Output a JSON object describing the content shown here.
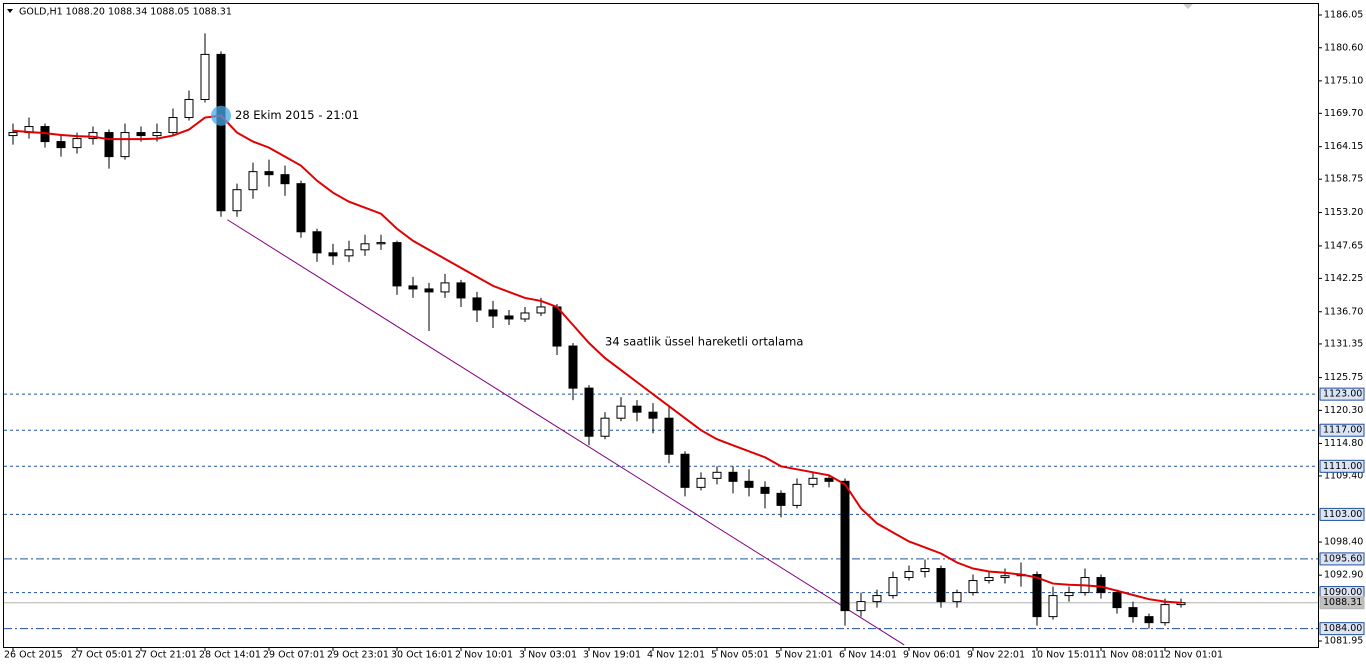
{
  "chart_data": {
    "type": "candlestick",
    "header": "GOLD,H1  1088.20 1088.34 1088.05 1088.31",
    "ylim": [
      1080.95,
      1187.88
    ],
    "yticks": [
      1186.05,
      {
        "value": 1180.6,
        "label": "1180.60"
      },
      {
        "value": 1175.1,
        "label": "1175.10"
      },
      {
        "value": 1169.7,
        "label": "1169.70"
      },
      1164.15,
      1158.75,
      {
        "value": 1153.2,
        "label": "1153.20"
      },
      1147.65,
      1142.25,
      {
        "value": 1136.7,
        "label": "1136.70"
      },
      1131.35,
      1125.75,
      {
        "value": 1120.3,
        "label": "1120.30"
      },
      {
        "value": 1114.8,
        "label": "1114.80"
      },
      {
        "value": 1109.4,
        "label": "1109.40"
      },
      {
        "value": 1098.4,
        "label": "1098.40"
      },
      {
        "value": 1092.9,
        "label": "1092.90"
      },
      1081.95
    ],
    "xtick_labels": [
      "26 Oct 2015",
      "27 Oct 05:01",
      "27 Oct 21:01",
      "28 Oct 14:01",
      "29 Oct 07:01",
      "29 Oct 23:01",
      "30 Oct 16:01",
      "2 Nov 10:01",
      "3 Nov 03:01",
      "3 Nov 19:01",
      "4 Nov 12:01",
      "5 Nov 05:01",
      "5 Nov 21:01",
      "6 Nov 14:01",
      "9 Nov 06:01",
      "9 Nov 22:01",
      "10 Nov 15:01",
      "11 Nov 08:01",
      "12 Nov 01:01"
    ],
    "ohlc": [
      [
        1166,
        1168,
        1164.5,
        1166.5
      ],
      [
        1166.5,
        1169,
        1165.5,
        1167.5
      ],
      [
        1167.5,
        1168,
        1164,
        1165
      ],
      [
        1165,
        1166,
        1162.5,
        1164
      ],
      [
        1164,
        1166.5,
        1163,
        1165.5
      ],
      [
        1165.5,
        1167.5,
        1164.5,
        1166.5
      ],
      [
        1166.5,
        1167,
        1160.5,
        1162.5
      ],
      [
        1162.5,
        1168,
        1162,
        1166.5
      ],
      [
        1166.5,
        1167.5,
        1165,
        1166
      ],
      [
        1166,
        1168,
        1165,
        1166.5
      ],
      [
        1166.5,
        1170.5,
        1166,
        1169
      ],
      [
        1169,
        1173.5,
        1168.5,
        1172
      ],
      [
        1172,
        1183,
        1171.5,
        1179.5
      ],
      [
        1179.5,
        1180,
        1152.5,
        1153.5
      ],
      [
        1153.5,
        1158,
        1152.5,
        1157
      ],
      [
        1157,
        1161.5,
        1155.5,
        1160
      ],
      [
        1160,
        1162,
        1157.5,
        1159.5
      ],
      [
        1159.5,
        1161,
        1156,
        1158
      ],
      [
        1158,
        1158.5,
        1149,
        1150
      ],
      [
        1150,
        1150.5,
        1145,
        1146.5
      ],
      [
        1146.5,
        1148,
        1144.5,
        1146
      ],
      [
        1146,
        1148.5,
        1145,
        1147
      ],
      [
        1147,
        1149.5,
        1146,
        1148
      ],
      [
        1148,
        1149.5,
        1147,
        1148.2
      ],
      [
        1148.2,
        1148.5,
        1139.5,
        1141
      ],
      [
        1141,
        1142.5,
        1139,
        1140.5
      ],
      [
        1140.5,
        1141.5,
        1133.5,
        1140
      ],
      [
        1140,
        1143,
        1139,
        1141.5
      ],
      [
        1141.5,
        1142,
        1137.5,
        1139
      ],
      [
        1139,
        1140,
        1135,
        1137
      ],
      [
        1137,
        1138.5,
        1134,
        1136
      ],
      [
        1136,
        1137,
        1134.5,
        1135.5
      ],
      [
        1135.5,
        1137.5,
        1135,
        1136.5
      ],
      [
        1136.5,
        1139,
        1136,
        1137.5
      ],
      [
        1137.5,
        1138,
        1129.5,
        1131
      ],
      [
        1131,
        1131.5,
        1122,
        1124
      ],
      [
        1124,
        1124.5,
        1114.5,
        1116
      ],
      [
        1116,
        1120,
        1115.5,
        1119
      ],
      [
        1119,
        1122.5,
        1118.5,
        1121
      ],
      [
        1121,
        1122,
        1118.5,
        1120
      ],
      [
        1120,
        1121.5,
        1116.5,
        1119
      ],
      [
        1119,
        1121,
        1111.5,
        1113
      ],
      [
        1113,
        1113.5,
        1106,
        1107.5
      ],
      [
        1107.5,
        1110,
        1107,
        1109
      ],
      [
        1109,
        1111,
        1108,
        1110
      ],
      [
        1110,
        1111,
        1106.5,
        1108.5
      ],
      [
        1108.5,
        1110.5,
        1106,
        1107.5
      ],
      [
        1107.5,
        1108.5,
        1104,
        1106.5
      ],
      [
        1106.5,
        1107,
        1102.5,
        1104.5
      ],
      [
        1104.5,
        1109,
        1104,
        1108
      ],
      [
        1108,
        1110,
        1107.5,
        1109
      ],
      [
        1109,
        1109.5,
        1107.5,
        1108.5
      ],
      [
        1108.5,
        1109,
        1084.5,
        1087
      ],
      [
        1087,
        1090,
        1086,
        1088.5
      ],
      [
        1088.5,
        1090.5,
        1087.5,
        1089.5
      ],
      [
        1089.5,
        1093.5,
        1089,
        1092.5
      ],
      [
        1092.5,
        1094.5,
        1092,
        1093.5
      ],
      [
        1093.5,
        1095.5,
        1092.5,
        1094
      ],
      [
        1094,
        1094.5,
        1087.5,
        1088.5
      ],
      [
        1088.5,
        1090.5,
        1087.5,
        1090
      ],
      [
        1090,
        1093,
        1089.5,
        1092
      ],
      [
        1092,
        1093.5,
        1091.5,
        1092.5
      ],
      [
        1092.5,
        1094,
        1091.5,
        1092.8
      ],
      [
        1092.8,
        1095,
        1091,
        1093
      ],
      [
        1093,
        1093.5,
        1084.5,
        1086
      ],
      [
        1086,
        1091,
        1085.5,
        1089.5
      ],
      [
        1089.5,
        1091,
        1088.5,
        1090
      ],
      [
        1090,
        1094,
        1089.5,
        1092.5
      ],
      [
        1092.5,
        1093,
        1089,
        1090
      ],
      [
        1090,
        1090.5,
        1086.5,
        1087.5
      ],
      [
        1087.5,
        1088.5,
        1085,
        1086
      ],
      [
        1086,
        1086.5,
        1084,
        1085
      ],
      [
        1085,
        1089,
        1084.5,
        1088
      ],
      [
        1088,
        1089,
        1087.5,
        1088.31
      ]
    ],
    "ema": {
      "color": "#e00000",
      "values": [
        1166.8,
        1166.6,
        1166.4,
        1166.1,
        1165.9,
        1165.8,
        1165.4,
        1165.4,
        1165.4,
        1165.5,
        1166,
        1167,
        1169,
        1169.3,
        1166.5,
        1165,
        1164,
        1162.5,
        1161,
        1158.5,
        1156.5,
        1155,
        1154,
        1153,
        1150.5,
        1148.5,
        1147,
        1145.5,
        1144,
        1142.5,
        1141,
        1140,
        1139,
        1138.5,
        1137.5,
        1134.5,
        1131.5,
        1129,
        1127,
        1125,
        1123,
        1121,
        1119,
        1117,
        1115.5,
        1114.5,
        1113.5,
        1112.5,
        1111,
        1110.5,
        1110,
        1109.5,
        1108,
        1104,
        1101.5,
        1100,
        1098.5,
        1097.5,
        1096.5,
        1095,
        1094,
        1093.5,
        1093.3,
        1093,
        1092.5,
        1091.5,
        1091.3,
        1091.2,
        1091,
        1090.3,
        1089.6,
        1088.9,
        1088.5,
        1088.3
      ]
    },
    "levels": [
      {
        "value": 1123,
        "label": "1123.00",
        "style": "dashed"
      },
      {
        "value": 1117,
        "label": "1117.00",
        "style": "dashed"
      },
      {
        "value": 1111,
        "label": "1111.00",
        "style": "dashed"
      },
      {
        "value": 1103,
        "label": "1103.00",
        "style": "dashed"
      },
      {
        "value": 1095.6,
        "label": "1095.60",
        "style": "dashdot"
      },
      {
        "value": 1090,
        "label": "1090.00",
        "style": "dashed"
      },
      {
        "value": 1088.31,
        "style": "solid"
      },
      {
        "value": 1084,
        "label": "1084.00",
        "style": "dashdot"
      }
    ],
    "trendline": {
      "color": "#800080",
      "start": [
        13.4,
        1152
      ],
      "end": [
        55.7,
        1081.3
      ]
    },
    "annotations": [
      {
        "text": "28 Ekim 2015 - 21:01",
        "index": 13
      },
      {
        "text": "34 saatlik üssel hareketli ortalama",
        "index": 37,
        "value": 1131.7
      }
    ]
  }
}
